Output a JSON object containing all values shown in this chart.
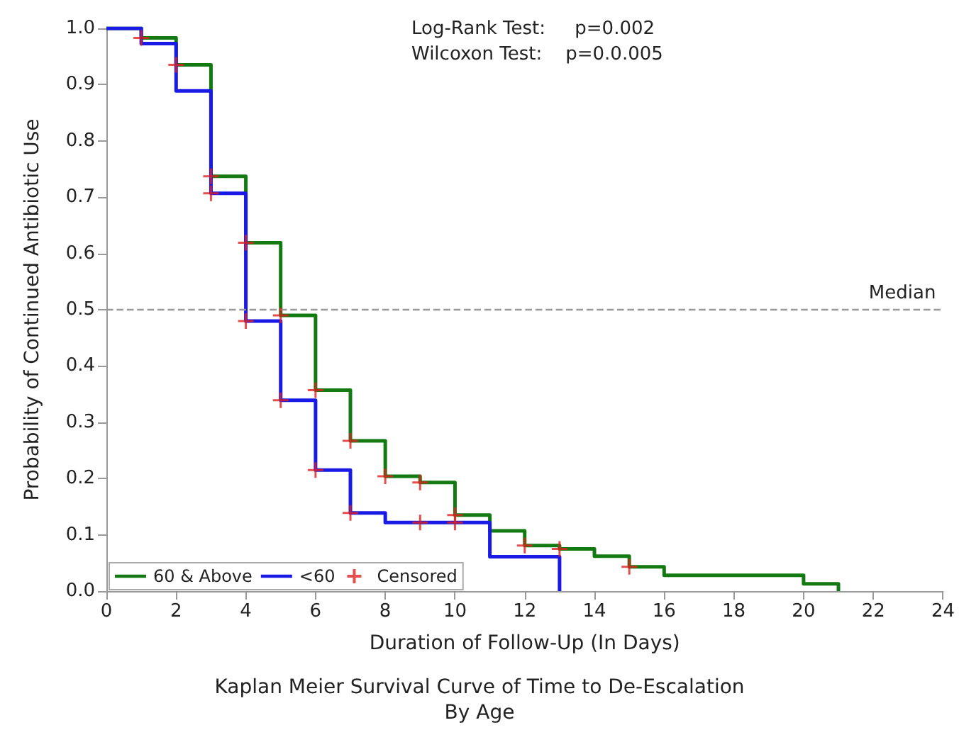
{
  "chart_data": {
    "type": "step",
    "title": "Kaplan Meier Survival Curve of Time to De-Escalation",
    "subtitle": "By Age",
    "xlabel": "Duration of Follow-Up (In Days)",
    "ylabel": "Probability of Continued Antibiotic Use",
    "annotations": [
      "Log-Rank Test:     p=0.002",
      "Wilcoxon Test:    p=0.0.005"
    ],
    "series": [
      {
        "name": "60 & Above",
        "color": "#137a13",
        "x": [
          0,
          1,
          2,
          3,
          4,
          5,
          6,
          7,
          8,
          9,
          10,
          11,
          12,
          13,
          14,
          15,
          16,
          20,
          21
        ],
        "values": [
          1.0,
          0.983,
          0.935,
          0.737,
          0.619,
          0.49,
          0.357,
          0.267,
          0.204,
          0.193,
          0.135,
          0.107,
          0.081,
          0.075,
          0.062,
          0.043,
          0.028,
          0.013,
          0
        ]
      },
      {
        "name": "<60",
        "color": "#1a1ae6",
        "x": [
          0,
          1,
          2,
          3,
          4,
          5,
          6,
          7,
          8,
          11,
          13
        ],
        "values": [
          1.0,
          0.973,
          0.889,
          0.707,
          0.48,
          0.339,
          0.215,
          0.139,
          0.122,
          0.061,
          0
        ]
      },
      {
        "name": "Censored",
        "type": "scatter",
        "marker": "cross",
        "color": "#e02020",
        "x": [
          1,
          2,
          3,
          4,
          5,
          6,
          7,
          8,
          9,
          10,
          12,
          13,
          15,
          3,
          4,
          5,
          6,
          7,
          9,
          10
        ],
        "values": [
          0.983,
          0.935,
          0.737,
          0.619,
          0.49,
          0.357,
          0.267,
          0.204,
          0.193,
          0.135,
          0.081,
          0.075,
          0.043,
          0.707,
          0.48,
          0.339,
          0.215,
          0.139,
          0.122,
          0.122
        ]
      }
    ],
    "xlim": [
      0,
      24
    ],
    "xticks": [
      0,
      2,
      4,
      6,
      8,
      10,
      12,
      14,
      16,
      18,
      20,
      22,
      24
    ],
    "ylim": [
      0,
      1
    ],
    "yticks": [
      {
        "value": 0,
        "label": "0.0"
      },
      {
        "value": 0.1,
        "label": "0.1"
      },
      {
        "value": 0.2,
        "label": "0.2"
      },
      {
        "value": 0.3,
        "label": "0.3"
      },
      {
        "value": 0.4,
        "label": "0.4"
      },
      {
        "value": 0.5,
        "label": "0.5"
      },
      {
        "value": 0.6,
        "label": "0.6"
      },
      {
        "value": 0.7,
        "label": "0.7"
      },
      {
        "value": 0.8,
        "label": "0.8"
      },
      {
        "value": 0.9,
        "label": "0.9"
      },
      {
        "value": 1,
        "label": "1.0"
      }
    ],
    "ref_lines": [
      {
        "axis": "y",
        "value": 0.5,
        "label": "Median",
        "color": "#999999",
        "line_style": "dashed"
      }
    ],
    "grid": false,
    "legend": "bottom left"
  }
}
